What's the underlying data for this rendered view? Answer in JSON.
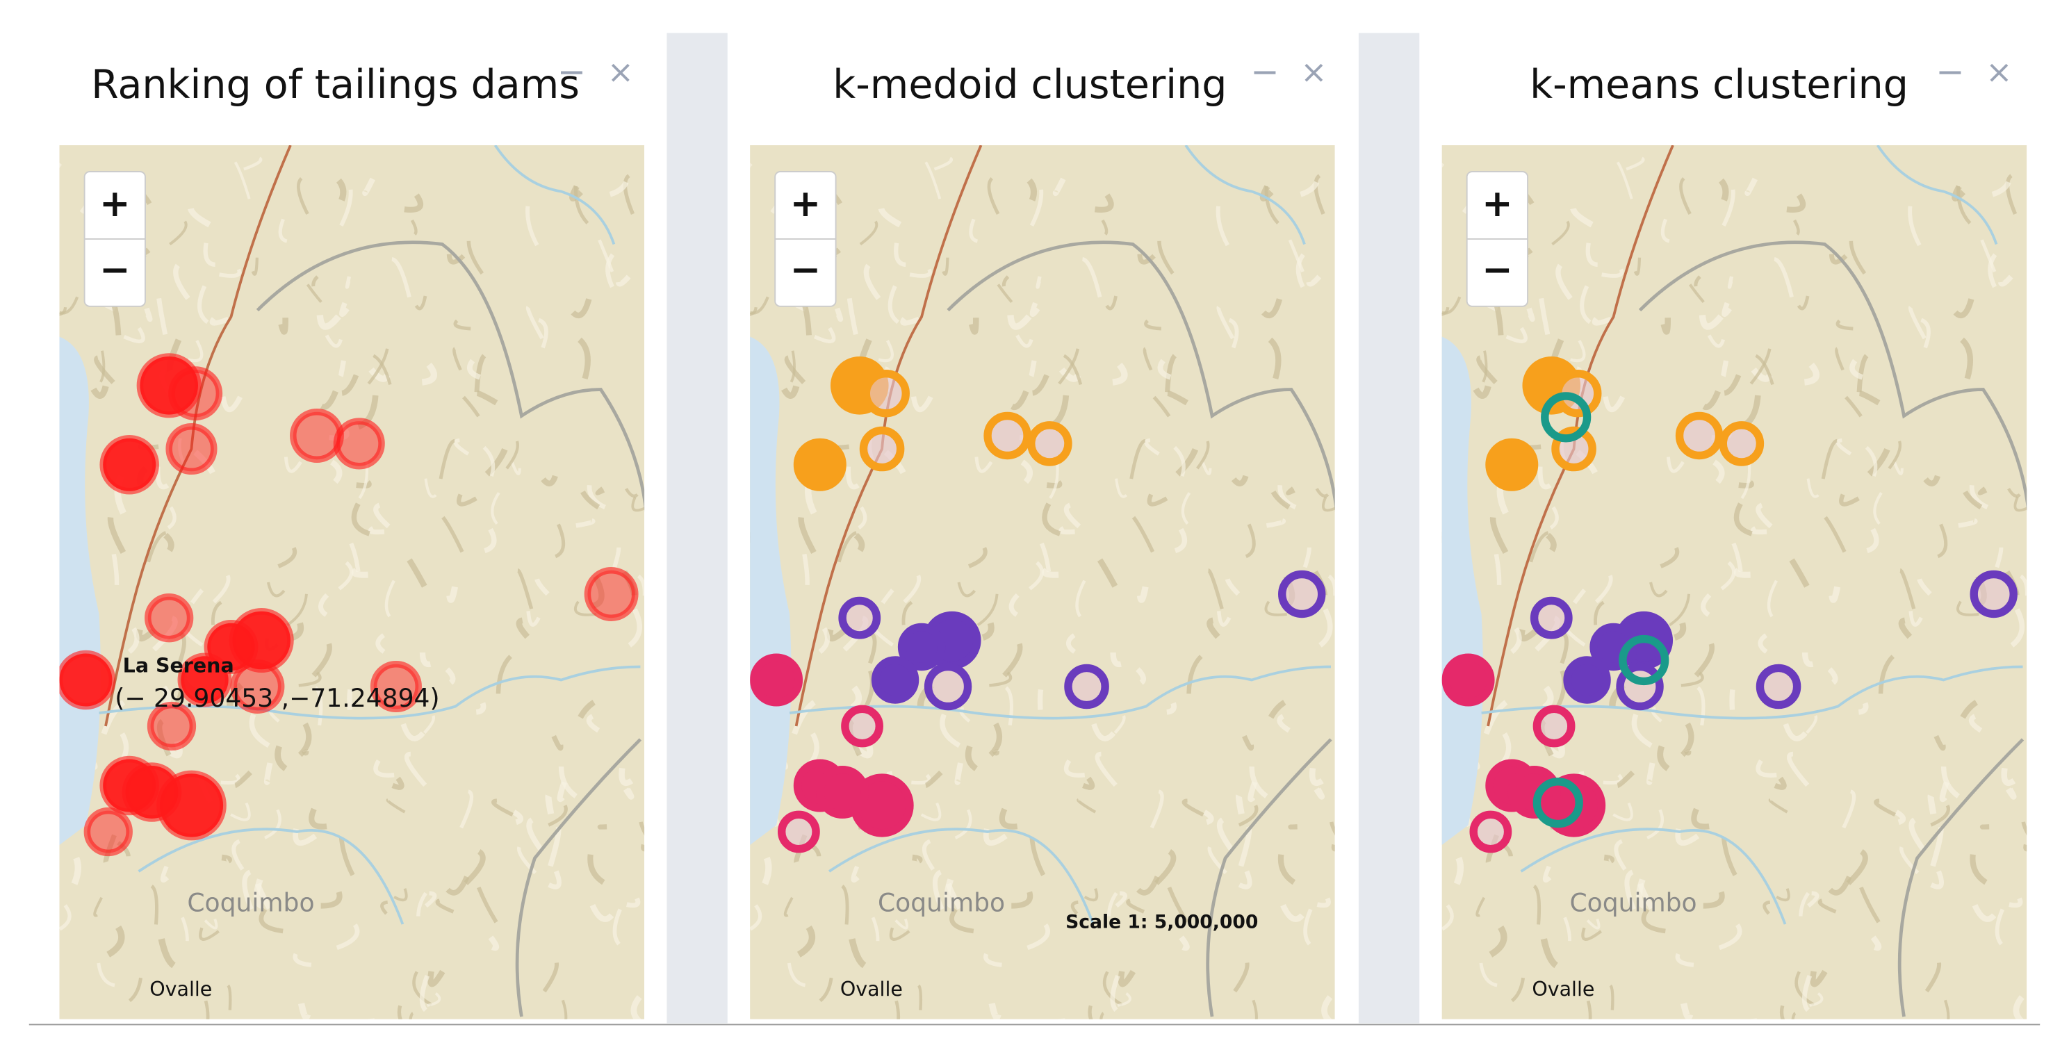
{
  "panels": [
    {
      "title": "Ranking of tailings dams",
      "minimize": "−",
      "close": "×",
      "zoom_in": "+",
      "zoom_out": "−",
      "labels": {
        "city": "La Serena",
        "coords": "(− 29.90453 ,−71.24894)",
        "town": "Coquimbo",
        "town2": "Ovalle"
      }
    },
    {
      "title": "k-medoid clustering",
      "minimize": "−",
      "close": "×",
      "zoom_in": "+",
      "zoom_out": "−",
      "labels": {
        "town": "Coquimbo",
        "town2": "Ovalle",
        "scale": "Scale 1: 5,000,000"
      }
    },
    {
      "title": "k-means clustering",
      "minimize": "−",
      "close": "×",
      "zoom_in": "+",
      "zoom_out": "−",
      "labels": {
        "town": "Coquimbo",
        "town2": "Ovalle"
      }
    }
  ]
}
